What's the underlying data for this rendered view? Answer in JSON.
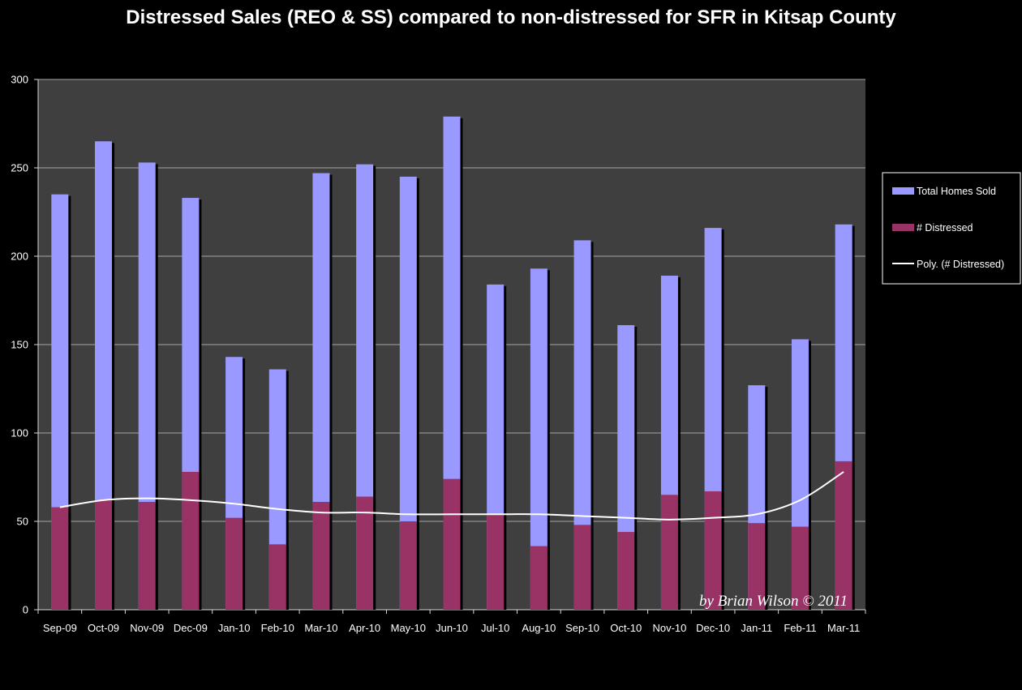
{
  "chart_data": {
    "type": "bar",
    "title": "Distressed Sales (REO & SS) compared to non-distressed for SFR in Kitsap County",
    "xlabel": "",
    "ylabel": "",
    "ylim": [
      0,
      300
    ],
    "yticks": [
      "0",
      "50",
      "100",
      "150",
      "200",
      "250",
      "300"
    ],
    "grid": true,
    "legend_position": "right",
    "categories": [
      "Sep-09",
      "Oct-09",
      "Nov-09",
      "Dec-09",
      "Jan-10",
      "Feb-10",
      "Mar-10",
      "Apr-10",
      "May-10",
      "Jun-10",
      "Jul-10",
      "Aug-10",
      "Sep-10",
      "Oct-10",
      "Nov-10",
      "Dec-10",
      "Jan-11",
      "Feb-11",
      "Mar-11"
    ],
    "series": [
      {
        "name": "Total Homes Sold",
        "color": "#9999ff",
        "values": [
          235,
          265,
          253,
          233,
          143,
          136,
          247,
          252,
          245,
          279,
          184,
          193,
          209,
          161,
          189,
          216,
          127,
          153,
          218
        ]
      },
      {
        "name": "# Distressed",
        "color": "#993366",
        "values": [
          58,
          62,
          61,
          78,
          52,
          37,
          61,
          64,
          50,
          74,
          54,
          36,
          48,
          44,
          65,
          67,
          49,
          47,
          84
        ]
      },
      {
        "name": "Poly. (# Distressed)",
        "color": "#ffffff",
        "type": "line",
        "values": [
          58,
          62,
          63,
          62,
          60,
          57,
          55,
          55,
          54,
          54,
          54,
          54,
          53,
          52,
          51,
          52,
          54,
          62,
          78
        ]
      }
    ],
    "annotation": "by Brian Wilson © 2011"
  }
}
